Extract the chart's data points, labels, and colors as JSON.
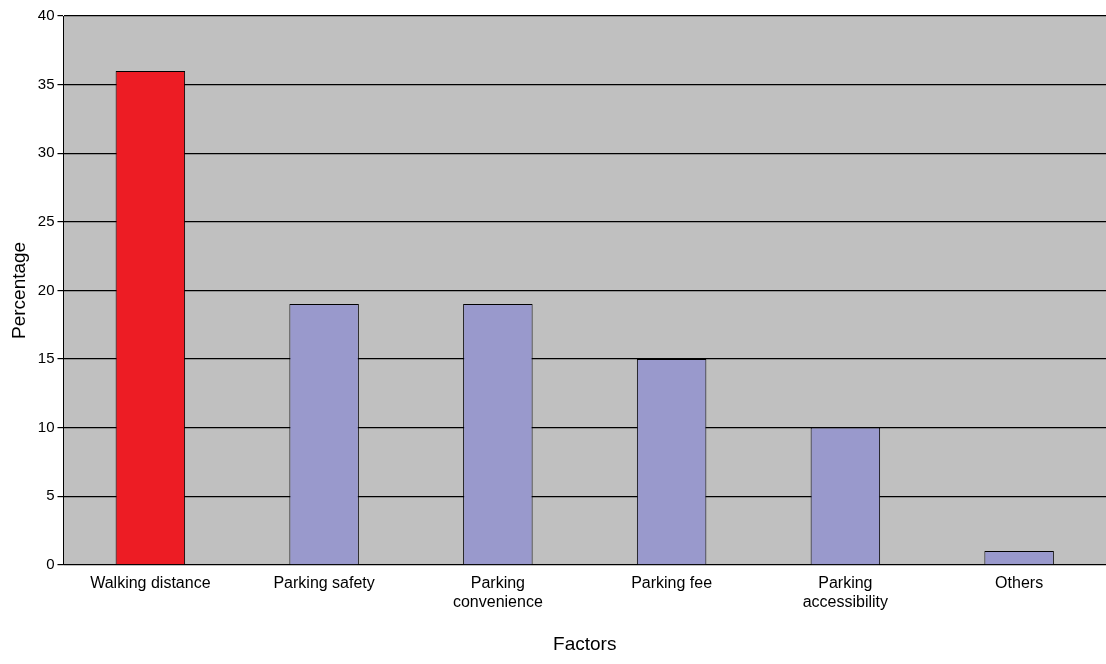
{
  "chart_data": {
    "type": "bar",
    "xlabel": "Factors",
    "ylabel": "Percentage",
    "categories": [
      "Walking distance",
      "Parking safety",
      "Parking convenience",
      "Parking fee",
      "Parking accessibility",
      "Others"
    ],
    "values": [
      36,
      19,
      19,
      15,
      10,
      1
    ],
    "colors": [
      "#ed1c24",
      "#9999cc",
      "#9999cc",
      "#9999cc",
      "#9999cc",
      "#9999cc"
    ],
    "ylim": [
      0,
      40
    ],
    "yticks": [
      0,
      5,
      10,
      15,
      20,
      25,
      30,
      35,
      40
    ],
    "grid": "y",
    "legend": false
  }
}
